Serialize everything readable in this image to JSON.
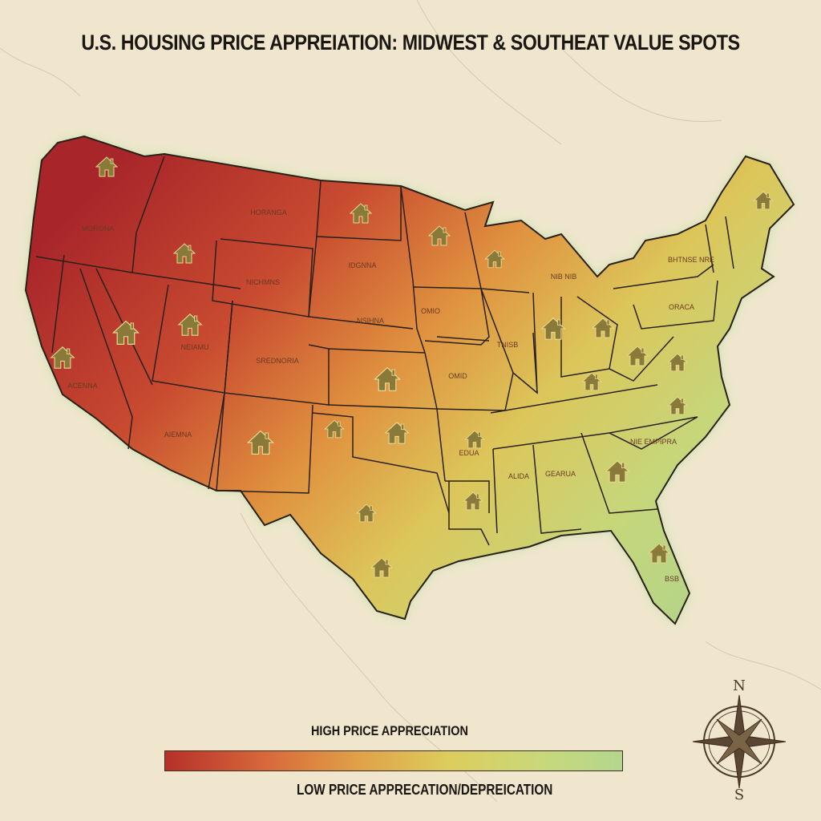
{
  "title": "U.S. HOUSING PRICE APPREIATION: MIDWEST & SOUTHEAT VALUE SPOTS",
  "legend": {
    "high_label": "HIGH PRICE APPRECIATION",
    "low_label": "LOW PRICE APPRECATION/DEPREICATION",
    "colors": [
      "#b5302a",
      "#d8683a",
      "#e0a048",
      "#dccd5c",
      "#b3d78e"
    ]
  },
  "compass": {
    "north": "N",
    "south": "S"
  },
  "state_labels": {
    "pacific_nw": "MORONA",
    "montana": "HORANGA",
    "south_dakota": "IDGNNA",
    "wyoming": "NICHMNS",
    "nebraska": "NSIHNA",
    "utah": "NEIAMU",
    "colorado": "SREDNORIA",
    "california": "ACENNA",
    "arizona": "AIEMNA",
    "iowa": "OMIO",
    "illinois": "TNISB",
    "missouri": "OMID",
    "arkansas": "EDUA",
    "mississippi": "ALIDA",
    "alabama": "GEARUA",
    "south_carolina": "NIE EMPIPRA",
    "new_york": "BHTNSE NRE",
    "pennsylvania": "ORACA",
    "michigan": "NIB NIB",
    "florida": "BSB"
  },
  "icons": {
    "marker": "house-icon",
    "compass": "compass-rose-icon"
  },
  "map_colors": {
    "high": "#b5302a",
    "mid": "#e0a048",
    "low": "#b3d78e",
    "border": "#2a2018",
    "background": "#efe6cd"
  }
}
